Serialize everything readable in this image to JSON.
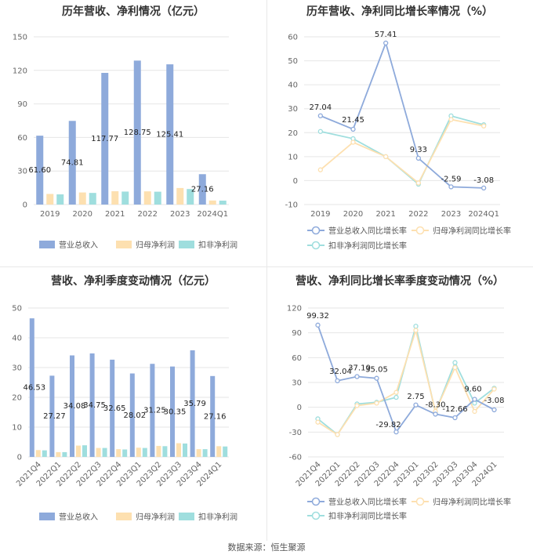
{
  "source": "数据来源：恒生聚源",
  "chart_data": [
    {
      "type": "bar",
      "title": "历年营收、净利情况（亿元）",
      "categories": [
        "2019",
        "2020",
        "2021",
        "2022",
        "2023",
        "2024Q1"
      ],
      "ylim": [
        0,
        150
      ],
      "yticks": [
        0,
        30,
        60,
        90,
        120,
        150
      ],
      "series": [
        {
          "name": "营业总收入",
          "color": "#8eaadb",
          "values": [
            61.6,
            74.81,
            117.77,
            128.75,
            125.41,
            27.16
          ],
          "labels": [
            "61.60",
            "74.81",
            "117.77",
            "128.75",
            "125.41",
            "27.16"
          ]
        },
        {
          "name": "归母净利润",
          "color": "#fde0b0",
          "values": [
            9.5,
            10.8,
            11.9,
            11.8,
            14.8,
            3.6
          ]
        },
        {
          "name": "扣非净利润",
          "color": "#9fdede",
          "values": [
            9.1,
            10.4,
            11.6,
            11.5,
            13.9,
            3.5
          ]
        }
      ],
      "legend": "bottom"
    },
    {
      "type": "line",
      "title": "历年营收、净利同比增长率情况（%）",
      "categories": [
        "2019",
        "2020",
        "2021",
        "2022",
        "2023",
        "2024Q1"
      ],
      "ylim": [
        -10,
        60
      ],
      "yticks": [
        -10,
        0,
        10,
        20,
        30,
        40,
        50,
        60
      ],
      "series": [
        {
          "name": "营业总收入同比增长率",
          "color": "#8eaadb",
          "values": [
            27.04,
            21.45,
            57.41,
            9.33,
            -2.59,
            -3.08
          ],
          "labels": [
            "27.04",
            "21.45",
            "57.41",
            "9.33",
            "-2.59",
            "-3.08"
          ]
        },
        {
          "name": "归母净利润同比增长率",
          "color": "#fde0b0",
          "values": [
            4.5,
            16.0,
            10.0,
            -1.0,
            25.5,
            22.8
          ]
        },
        {
          "name": "扣非净利润同比增长率",
          "color": "#9fdede",
          "values": [
            20.5,
            17.5,
            10.0,
            -1.5,
            27.0,
            23.3
          ]
        }
      ],
      "legend": "bottom"
    },
    {
      "type": "bar",
      "title": "营收、净利季度变动情况（亿元）",
      "categories": [
        "2021Q4",
        "2022Q1",
        "2022Q2",
        "2022Q3",
        "2022Q4",
        "2023Q1",
        "2023Q2",
        "2023Q3",
        "2023Q4",
        "2024Q1"
      ],
      "ylim": [
        0,
        50
      ],
      "yticks": [
        0,
        10,
        20,
        30,
        40,
        50
      ],
      "series": [
        {
          "name": "营业总收入",
          "color": "#8eaadb",
          "values": [
            46.53,
            27.27,
            34.08,
            34.75,
            32.65,
            28.02,
            31.25,
            30.35,
            35.79,
            27.16
          ],
          "labels": [
            "46.53",
            "27.27",
            "34.08",
            "34.75",
            "32.65",
            "28.02",
            "31.25",
            "30.35",
            "35.79",
            "27.16"
          ]
        },
        {
          "name": "归母净利润",
          "color": "#fde0b0",
          "values": [
            2.3,
            1.6,
            3.8,
            3.0,
            2.6,
            3.1,
            3.7,
            4.6,
            2.6,
            3.6
          ]
        },
        {
          "name": "扣非净利润",
          "color": "#9fdede",
          "values": [
            2.2,
            1.6,
            3.9,
            3.0,
            2.5,
            3.0,
            3.6,
            4.5,
            2.6,
            3.5
          ]
        }
      ],
      "legend": "bottom"
    },
    {
      "type": "line",
      "title": "营收、净利同比增长率季度变动情况（%）",
      "categories": [
        "2021Q4",
        "2022Q1",
        "2022Q2",
        "2022Q3",
        "2022Q4",
        "2023Q1",
        "2023Q2",
        "2023Q3",
        "2023Q4",
        "2024Q1"
      ],
      "ylim": [
        -60,
        120
      ],
      "yticks": [
        -60,
        -30,
        0,
        30,
        60,
        90,
        120
      ],
      "series": [
        {
          "name": "营业总收入同比增长率",
          "color": "#8eaadb",
          "values": [
            99.32,
            32.04,
            37.1,
            35.05,
            -29.82,
            2.75,
            -8.3,
            -12.66,
            9.6,
            -3.08
          ],
          "labels": [
            "99.32",
            "32.04",
            "37.10",
            "35.05",
            "-29.82",
            "2.75",
            "-8.30",
            "-12.66",
            "9.60",
            "-3.08"
          ]
        },
        {
          "name": "归母净利润同比增长率",
          "color": "#fde0b0",
          "values": [
            -18,
            -33,
            2,
            5,
            18,
            93,
            -5,
            48,
            -5,
            22
          ]
        },
        {
          "name": "扣非净利润同比增长率",
          "color": "#9fdede",
          "values": [
            -14,
            -33,
            4,
            6,
            12,
            98,
            -6,
            54,
            5,
            23
          ]
        }
      ],
      "legend": "bottom"
    }
  ]
}
